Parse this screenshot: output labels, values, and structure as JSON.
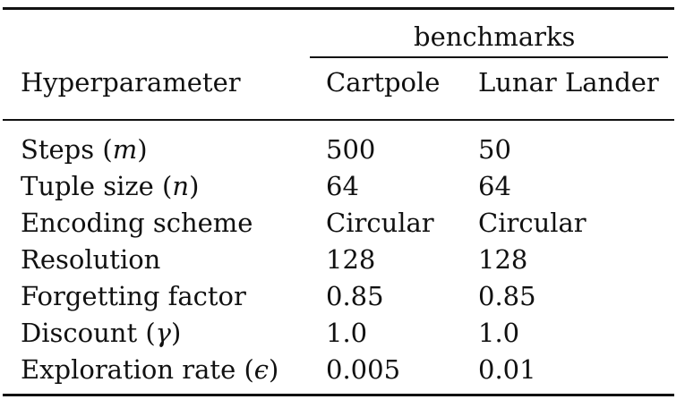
{
  "table": {
    "group_header": "benchmarks",
    "columns": [
      "Hyperparameter",
      "Cartpole",
      "Lunar Lander"
    ],
    "rows": [
      {
        "label_text": "Steps",
        "symbol": "m",
        "cartpole": "500",
        "lunar_lander": "50"
      },
      {
        "label_text": "Tuple size",
        "symbol": "n",
        "cartpole": "64",
        "lunar_lander": "64"
      },
      {
        "label_text": "Encoding scheme",
        "symbol": "",
        "cartpole": "Circular",
        "lunar_lander": "Circular"
      },
      {
        "label_text": "Resolution",
        "symbol": "",
        "cartpole": "128",
        "lunar_lander": "128"
      },
      {
        "label_text": "Forgetting factor",
        "symbol": "",
        "cartpole": "0.85",
        "lunar_lander": "0.85"
      },
      {
        "label_text": "Discount",
        "symbol": "γ",
        "cartpole": "1.0",
        "lunar_lander": "1.0"
      },
      {
        "label_text": "Exploration rate",
        "symbol": "ϵ",
        "cartpole": "0.005",
        "lunar_lander": "0.01"
      }
    ]
  }
}
